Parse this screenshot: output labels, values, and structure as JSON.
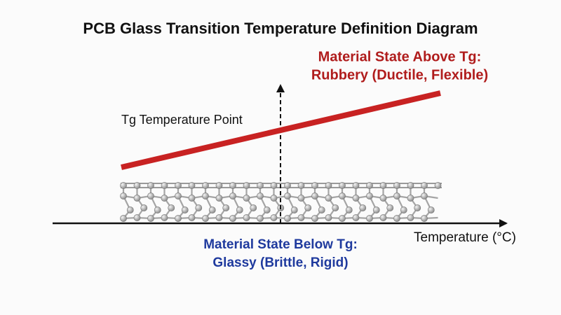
{
  "header": {
    "title": "PCB Glass Transition Temperature Definition Diagram"
  },
  "labels": {
    "above_tg": [
      "Material State Above Tg:",
      "Rubbery (Ductile, Flexible)"
    ],
    "tg_point": "Tg Temperature Point",
    "below_tg": [
      "Material State Below Tg:",
      "Glassy (Brittle, Rigid)"
    ],
    "x_axis": "Temperature (°C)"
  }
}
